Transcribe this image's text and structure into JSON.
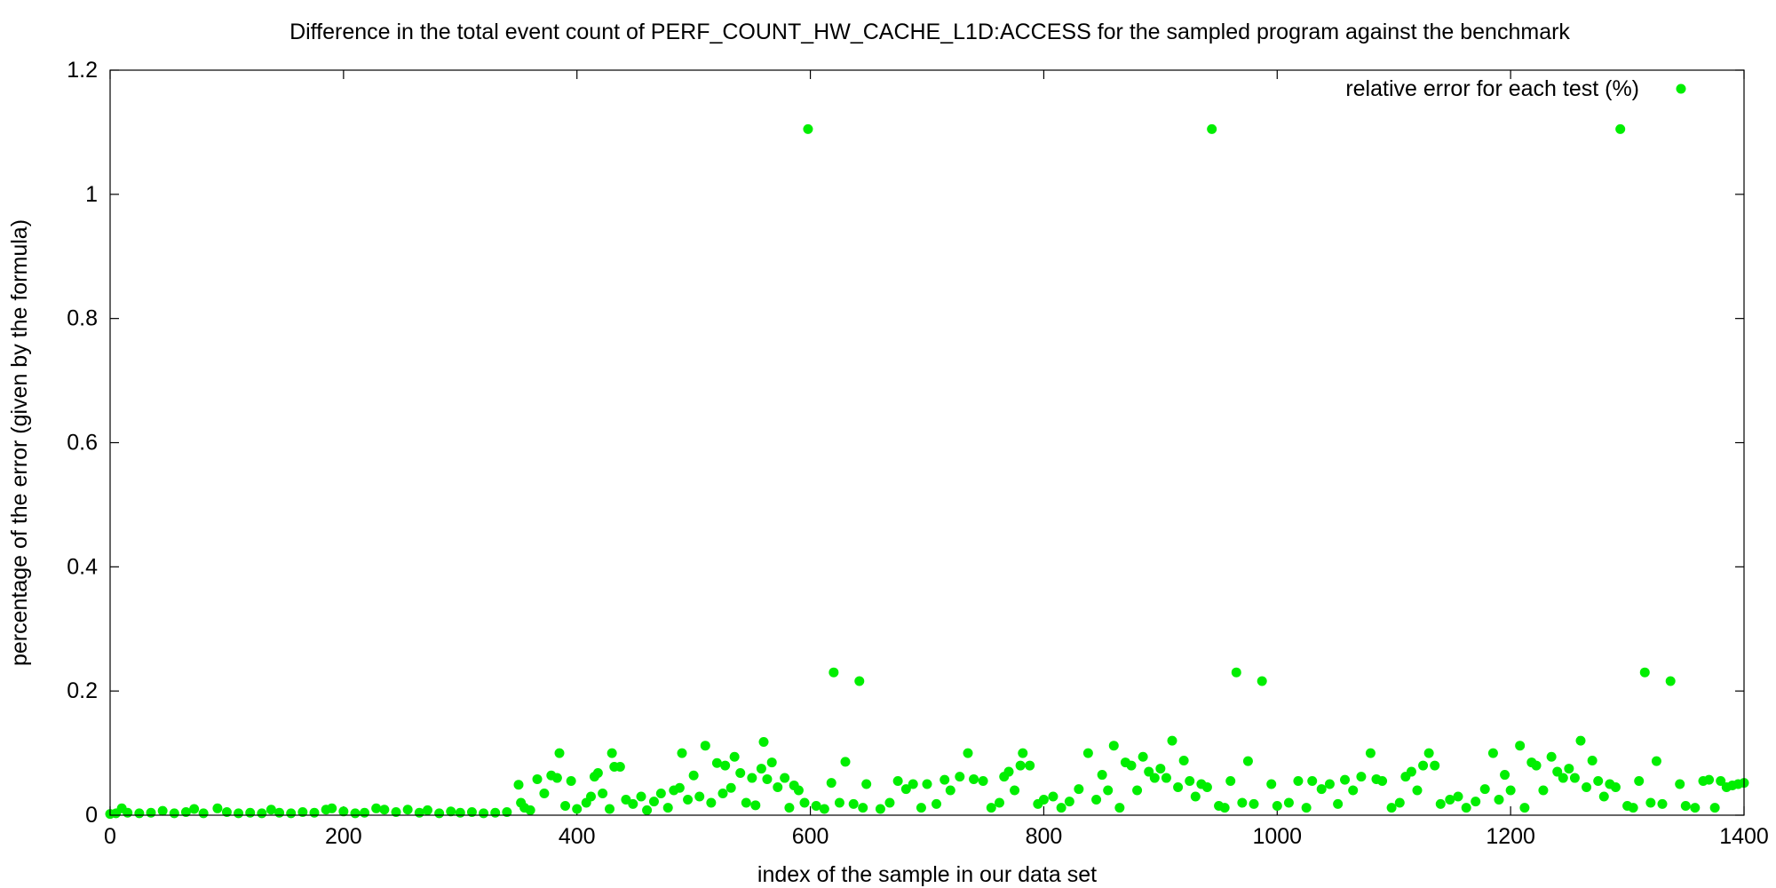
{
  "chart_data": {
    "type": "scatter",
    "title": "Difference in the total event count of PERF_COUNT_HW_CACHE_L1D:ACCESS for the sampled program against the benchmark",
    "xlabel": "index of the sample in our data set",
    "ylabel": "percentage of the error (given by the formula)",
    "xlim": [
      0,
      1400
    ],
    "ylim": [
      0,
      1.2
    ],
    "xticks": [
      0,
      200,
      400,
      600,
      800,
      1000,
      1200,
      1400
    ],
    "yticks": [
      0,
      0.2,
      0.4,
      0.6,
      0.8,
      1,
      1.2
    ],
    "grid": false,
    "legend_position": "top-right",
    "series": [
      {
        "name": "relative error for each test (%)",
        "color": "#00ee00",
        "points": [
          [
            0,
            0.002
          ],
          [
            5,
            0.003
          ],
          [
            10,
            0.011
          ],
          [
            15,
            0.004
          ],
          [
            25,
            0.003
          ],
          [
            35,
            0.004
          ],
          [
            45,
            0.007
          ],
          [
            55,
            0.003
          ],
          [
            65,
            0.005
          ],
          [
            72,
            0.01
          ],
          [
            80,
            0.003
          ],
          [
            92,
            0.011
          ],
          [
            100,
            0.005
          ],
          [
            110,
            0.003
          ],
          [
            120,
            0.004
          ],
          [
            130,
            0.003
          ],
          [
            138,
            0.009
          ],
          [
            145,
            0.004
          ],
          [
            155,
            0.003
          ],
          [
            165,
            0.005
          ],
          [
            175,
            0.004
          ],
          [
            185,
            0.009
          ],
          [
            190,
            0.011
          ],
          [
            200,
            0.006
          ],
          [
            210,
            0.003
          ],
          [
            218,
            0.004
          ],
          [
            228,
            0.011
          ],
          [
            235,
            0.009
          ],
          [
            245,
            0.005
          ],
          [
            255,
            0.009
          ],
          [
            265,
            0.004
          ],
          [
            272,
            0.008
          ],
          [
            282,
            0.003
          ],
          [
            292,
            0.006
          ],
          [
            300,
            0.004
          ],
          [
            310,
            0.005
          ],
          [
            320,
            0.003
          ],
          [
            330,
            0.004
          ],
          [
            340,
            0.005
          ],
          [
            350,
            0.049
          ],
          [
            352,
            0.02
          ],
          [
            355,
            0.012
          ],
          [
            360,
            0.008
          ],
          [
            366,
            0.058
          ],
          [
            372,
            0.035
          ],
          [
            378,
            0.064
          ],
          [
            383,
            0.06
          ],
          [
            385,
            0.1
          ],
          [
            390,
            0.015
          ],
          [
            395,
            0.055
          ],
          [
            400,
            0.01
          ],
          [
            408,
            0.02
          ],
          [
            412,
            0.03
          ],
          [
            415,
            0.062
          ],
          [
            418,
            0.068
          ],
          [
            422,
            0.035
          ],
          [
            428,
            0.01
          ],
          [
            430,
            0.1
          ],
          [
            432,
            0.078
          ],
          [
            437,
            0.078
          ],
          [
            442,
            0.025
          ],
          [
            448,
            0.018
          ],
          [
            455,
            0.03
          ],
          [
            460,
            0.008
          ],
          [
            466,
            0.022
          ],
          [
            472,
            0.035
          ],
          [
            478,
            0.012
          ],
          [
            483,
            0.04
          ],
          [
            488,
            0.044
          ],
          [
            490,
            0.1
          ],
          [
            495,
            0.025
          ],
          [
            500,
            0.064
          ],
          [
            505,
            0.03
          ],
          [
            510,
            0.112
          ],
          [
            515,
            0.02
          ],
          [
            520,
            0.084
          ],
          [
            525,
            0.035
          ],
          [
            527,
            0.08
          ],
          [
            532,
            0.044
          ],
          [
            535,
            0.094
          ],
          [
            540,
            0.068
          ],
          [
            545,
            0.02
          ],
          [
            550,
            0.06
          ],
          [
            553,
            0.016
          ],
          [
            558,
            0.075
          ],
          [
            560,
            0.118
          ],
          [
            563,
            0.058
          ],
          [
            567,
            0.085
          ],
          [
            572,
            0.045
          ],
          [
            578,
            0.06
          ],
          [
            582,
            0.012
          ],
          [
            586,
            0.048
          ],
          [
            590,
            0.04
          ],
          [
            595,
            0.02
          ],
          [
            598,
            1.105
          ],
          [
            605,
            0.015
          ],
          [
            612,
            0.01
          ],
          [
            618,
            0.052
          ],
          [
            620,
            0.23
          ],
          [
            625,
            0.02
          ],
          [
            630,
            0.086
          ],
          [
            637,
            0.018
          ],
          [
            642,
            0.216
          ],
          [
            645,
            0.012
          ],
          [
            648,
            0.05
          ],
          [
            660,
            0.01
          ],
          [
            668,
            0.02
          ],
          [
            675,
            0.055
          ],
          [
            682,
            0.042
          ],
          [
            688,
            0.05
          ],
          [
            695,
            0.012
          ],
          [
            700,
            0.05
          ],
          [
            708,
            0.018
          ],
          [
            715,
            0.057
          ],
          [
            720,
            0.04
          ],
          [
            728,
            0.062
          ],
          [
            735,
            0.1
          ],
          [
            740,
            0.058
          ],
          [
            748,
            0.055
          ],
          [
            755,
            0.012
          ],
          [
            762,
            0.02
          ],
          [
            766,
            0.062
          ],
          [
            770,
            0.07
          ],
          [
            775,
            0.04
          ],
          [
            780,
            0.08
          ],
          [
            782,
            0.1
          ],
          [
            788,
            0.08
          ],
          [
            795,
            0.018
          ],
          [
            800,
            0.025
          ],
          [
            808,
            0.03
          ],
          [
            815,
            0.012
          ],
          [
            822,
            0.022
          ],
          [
            830,
            0.042
          ],
          [
            838,
            0.1
          ],
          [
            845,
            0.025
          ],
          [
            850,
            0.065
          ],
          [
            855,
            0.04
          ],
          [
            860,
            0.112
          ],
          [
            865,
            0.012
          ],
          [
            870,
            0.085
          ],
          [
            875,
            0.08
          ],
          [
            880,
            0.04
          ],
          [
            885,
            0.094
          ],
          [
            890,
            0.07
          ],
          [
            895,
            0.06
          ],
          [
            900,
            0.075
          ],
          [
            905,
            0.06
          ],
          [
            910,
            0.12
          ],
          [
            915,
            0.045
          ],
          [
            920,
            0.088
          ],
          [
            925,
            0.055
          ],
          [
            930,
            0.03
          ],
          [
            935,
            0.05
          ],
          [
            940,
            0.045
          ],
          [
            944,
            1.105
          ],
          [
            950,
            0.015
          ],
          [
            955,
            0.012
          ],
          [
            960,
            0.055
          ],
          [
            965,
            0.23
          ],
          [
            970,
            0.02
          ],
          [
            975,
            0.087
          ],
          [
            980,
            0.018
          ],
          [
            987,
            0.216
          ],
          [
            995,
            0.05
          ],
          [
            1000,
            0.015
          ],
          [
            1010,
            0.02
          ],
          [
            1018,
            0.055
          ],
          [
            1025,
            0.012
          ],
          [
            1030,
            0.055
          ],
          [
            1038,
            0.042
          ],
          [
            1045,
            0.05
          ],
          [
            1052,
            0.018
          ],
          [
            1058,
            0.057
          ],
          [
            1065,
            0.04
          ],
          [
            1072,
            0.062
          ],
          [
            1080,
            0.1
          ],
          [
            1085,
            0.058
          ],
          [
            1090,
            0.055
          ],
          [
            1098,
            0.012
          ],
          [
            1105,
            0.02
          ],
          [
            1110,
            0.062
          ],
          [
            1115,
            0.07
          ],
          [
            1120,
            0.04
          ],
          [
            1125,
            0.08
          ],
          [
            1130,
            0.1
          ],
          [
            1135,
            0.08
          ],
          [
            1140,
            0.018
          ],
          [
            1148,
            0.025
          ],
          [
            1155,
            0.03
          ],
          [
            1162,
            0.012
          ],
          [
            1170,
            0.022
          ],
          [
            1178,
            0.042
          ],
          [
            1185,
            0.1
          ],
          [
            1190,
            0.025
          ],
          [
            1195,
            0.065
          ],
          [
            1200,
            0.04
          ],
          [
            1208,
            0.112
          ],
          [
            1212,
            0.012
          ],
          [
            1218,
            0.085
          ],
          [
            1222,
            0.08
          ],
          [
            1228,
            0.04
          ],
          [
            1235,
            0.094
          ],
          [
            1240,
            0.07
          ],
          [
            1245,
            0.06
          ],
          [
            1250,
            0.075
          ],
          [
            1255,
            0.06
          ],
          [
            1260,
            0.12
          ],
          [
            1265,
            0.045
          ],
          [
            1270,
            0.088
          ],
          [
            1275,
            0.055
          ],
          [
            1280,
            0.03
          ],
          [
            1285,
            0.05
          ],
          [
            1290,
            0.045
          ],
          [
            1294,
            1.105
          ],
          [
            1300,
            0.015
          ],
          [
            1305,
            0.012
          ],
          [
            1310,
            0.055
          ],
          [
            1315,
            0.23
          ],
          [
            1320,
            0.02
          ],
          [
            1325,
            0.087
          ],
          [
            1330,
            0.018
          ],
          [
            1337,
            0.216
          ],
          [
            1345,
            0.05
          ],
          [
            1350,
            0.015
          ],
          [
            1358,
            0.012
          ],
          [
            1365,
            0.055
          ],
          [
            1370,
            0.057
          ],
          [
            1375,
            0.012
          ],
          [
            1380,
            0.055
          ],
          [
            1385,
            0.045
          ],
          [
            1390,
            0.048
          ],
          [
            1395,
            0.05
          ],
          [
            1400,
            0.052
          ]
        ]
      }
    ]
  }
}
